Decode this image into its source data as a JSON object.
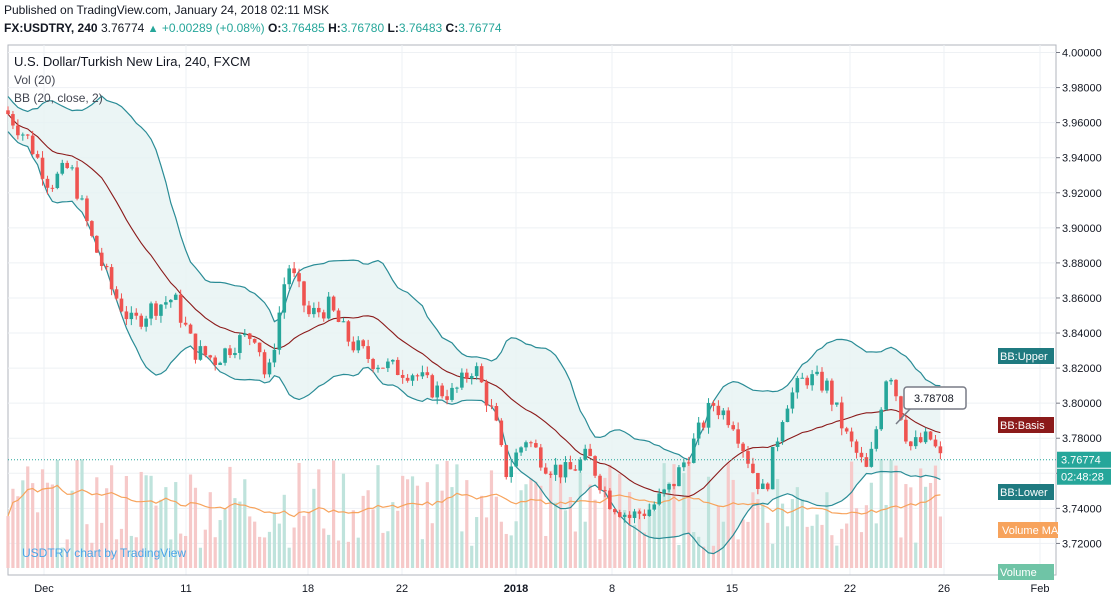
{
  "header": {
    "published": "Published on TradingView.com, January 24, 2018 02:11 MSK",
    "symbol": "FX:USDTRY, 240",
    "last": "3.76774",
    "change": "+0.00289 (+0.08%)",
    "o_label": "O:",
    "o_value": "3.76485",
    "h_label": "H:",
    "h_value": "3.76780",
    "l_label": "L:",
    "l_value": "3.76483",
    "c_label": "C:",
    "c_value": "3.76774"
  },
  "legend": {
    "title": "U.S. Dollar/Turkish New Lira, 240, FXCM",
    "vol": "Vol (20)",
    "bb": "BB (20, close, 2)"
  },
  "watermark": "USDTRY chart by TradingView",
  "colors": {
    "up": "#26a69a",
    "down": "#ef5350",
    "bb_band": "#2a8c96",
    "bb_fill": "#e6f2f3",
    "bb_basis": "#8b1a1a",
    "vol_up": "#bfe3dc",
    "vol_down": "#f6c9c9",
    "vol_ma": "#f7a35c",
    "grid": "#eef1f4",
    "last_line": "#26a69a"
  },
  "chart_data": {
    "type": "candlestick",
    "title": "U.S. Dollar/Turkish New Lira, 240, FXCM",
    "interval": "240",
    "y_axis": {
      "min": 3.7,
      "max": 4.0,
      "ticks": [
        "4.00000",
        "3.98000",
        "3.96000",
        "3.94000",
        "3.92000",
        "3.90000",
        "3.88000",
        "3.86000",
        "3.84000",
        "3.82000",
        "3.80000",
        "3.78000",
        "3.76000",
        "3.74000",
        "3.72000"
      ]
    },
    "x_axis": {
      "labels": [
        "Dec",
        "11",
        "18",
        "22",
        "2018",
        "8",
        "15",
        "22",
        "26",
        "Feb"
      ],
      "bold_labels": [
        "2018"
      ]
    },
    "price_labels": {
      "bb_upper": "BB:Upper",
      "bb_basis": "BB:Basis",
      "bb_lower": "BB:Lower",
      "last_price": "3.76774",
      "countdown": "02:48:28",
      "volume_ma": "Volume MA",
      "volume": "Volume",
      "callout": "3.78708"
    },
    "close_path": [
      [
        0.0,
        3.965
      ],
      [
        0.02,
        3.95
      ],
      [
        0.04,
        3.925
      ],
      [
        0.06,
        3.935
      ],
      [
        0.08,
        3.895
      ],
      [
        0.1,
        3.865
      ],
      [
        0.12,
        3.845
      ],
      [
        0.14,
        3.855
      ],
      [
        0.16,
        3.86
      ],
      [
        0.18,
        3.83
      ],
      [
        0.2,
        3.825
      ],
      [
        0.22,
        3.835
      ],
      [
        0.24,
        3.84
      ],
      [
        0.25,
        3.81
      ],
      [
        0.27,
        3.88
      ],
      [
        0.29,
        3.85
      ],
      [
        0.31,
        3.855
      ],
      [
        0.33,
        3.835
      ],
      [
        0.35,
        3.825
      ],
      [
        0.37,
        3.82
      ],
      [
        0.39,
        3.818
      ],
      [
        0.41,
        3.808
      ],
      [
        0.43,
        3.805
      ],
      [
        0.45,
        3.822
      ],
      [
        0.47,
        3.79
      ],
      [
        0.48,
        3.76
      ],
      [
        0.5,
        3.78
      ],
      [
        0.52,
        3.765
      ],
      [
        0.54,
        3.76
      ],
      [
        0.56,
        3.77
      ],
      [
        0.58,
        3.745
      ],
      [
        0.6,
        3.735
      ],
      [
        0.62,
        3.74
      ],
      [
        0.64,
        3.752
      ],
      [
        0.66,
        3.775
      ],
      [
        0.68,
        3.8
      ],
      [
        0.7,
        3.79
      ],
      [
        0.72,
        3.76
      ],
      [
        0.73,
        3.748
      ],
      [
        0.75,
        3.8
      ],
      [
        0.77,
        3.815
      ],
      [
        0.79,
        3.81
      ],
      [
        0.81,
        3.78
      ],
      [
        0.83,
        3.76
      ],
      [
        0.85,
        3.823
      ],
      [
        0.87,
        3.775
      ],
      [
        0.89,
        3.78
      ],
      [
        0.9,
        3.768
      ]
    ]
  }
}
